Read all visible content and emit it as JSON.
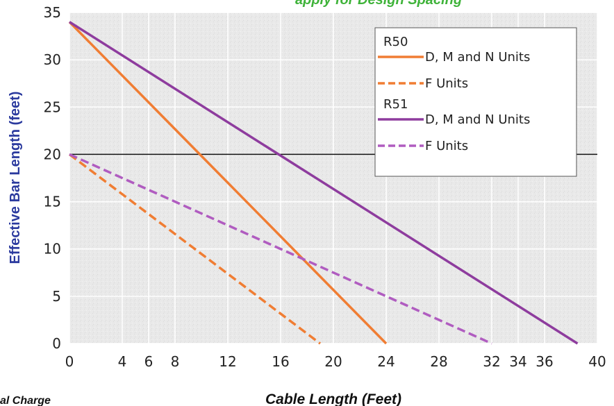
{
  "chart_data": {
    "type": "line",
    "top_note": "apply for Design Spacing",
    "footnote": "al Charge",
    "xlabel": "Cable Length (Feet)",
    "ylabel": "Effective Bar Length (feet)",
    "x_ticks": [
      0,
      4,
      6,
      8,
      12,
      16,
      20,
      24,
      28,
      32,
      34,
      36,
      40
    ],
    "y_ticks": [
      0,
      5,
      10,
      15,
      20,
      25,
      30,
      35
    ],
    "xlim": [
      0,
      40
    ],
    "ylim": [
      0,
      35
    ],
    "grid": true,
    "reference_line_y": 20,
    "legend": {
      "placement": "top-right",
      "groups": [
        {
          "title": "R50",
          "entries": [
            {
              "label": "D, M and N Units",
              "style": "solid",
              "color": "#f07d33"
            },
            {
              "label": "F Units",
              "style": "dashed",
              "color": "#f07d33"
            }
          ]
        },
        {
          "title": "R51",
          "entries": [
            {
              "label": "D, M and N Units",
              "style": "solid",
              "color": "#8e3c9e"
            },
            {
              "label": "F Units",
              "style": "dashed",
              "color": "#b05cc0"
            }
          ]
        }
      ]
    },
    "series": [
      {
        "group": "R50",
        "name": "D, M and N Units",
        "color": "#f07d33",
        "dash": false,
        "points": [
          [
            0,
            34
          ],
          [
            24,
            0
          ]
        ]
      },
      {
        "group": "R50",
        "name": "F Units",
        "color": "#f07d33",
        "dash": true,
        "points": [
          [
            0,
            20
          ],
          [
            19,
            0
          ]
        ]
      },
      {
        "group": "R51",
        "name": "D, M and N Units",
        "color": "#8e3c9e",
        "dash": false,
        "points": [
          [
            0,
            34
          ],
          [
            38.5,
            0
          ]
        ]
      },
      {
        "group": "R51",
        "name": "F Units",
        "color": "#b05cc0",
        "dash": true,
        "points": [
          [
            0,
            20
          ],
          [
            32,
            0
          ]
        ]
      }
    ]
  }
}
